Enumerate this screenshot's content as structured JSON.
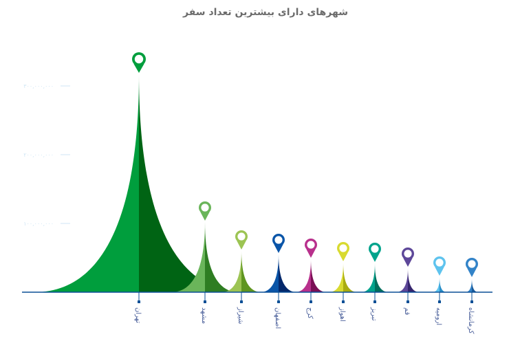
{
  "chart_data": {
    "type": "area",
    "title": "شهرهای دارای بیشترین تعداد سفر",
    "xlabel": "",
    "ylabel": "",
    "ylim": [
      0,
      300000000
    ],
    "y_ticks": [
      {
        "value": 100000000,
        "label": "۱۰۰,۰۰۰,۰۰۰"
      },
      {
        "value": 200000000,
        "label": "۲۰۰,۰۰۰,۰۰۰"
      },
      {
        "value": 300000000,
        "label": "۳۰۰,۰۰۰,۰۰۰"
      }
    ],
    "grid": false,
    "categories": [
      "تهران",
      "مشهد",
      "شیراز",
      "اصفهان",
      "کرج",
      "اهواز",
      "تبریز",
      "قم",
      "ارومیه",
      "کرمانشاه"
    ],
    "values": [
      317000000,
      102000000,
      60000000,
      55000000,
      48000000,
      43000000,
      42000000,
      35000000,
      22000000,
      20000000
    ],
    "colors": [
      [
        "#009e3d",
        "#006414"
      ],
      [
        "#6ab55a",
        "#2e7d22"
      ],
      [
        "#9cc453",
        "#5f951f"
      ],
      [
        "#0a55a8",
        "#04286b"
      ],
      [
        "#b8308c",
        "#7a0f55"
      ],
      [
        "#d8da30",
        "#a9ac10"
      ],
      [
        "#00a38c",
        "#006e5c"
      ],
      [
        "#5d4799",
        "#35256d"
      ],
      [
        "#5ec3ee",
        "#2a8fc8"
      ],
      [
        "#3283c8",
        "#1a5a9a"
      ]
    ],
    "axis_color": "#0a4f96"
  }
}
